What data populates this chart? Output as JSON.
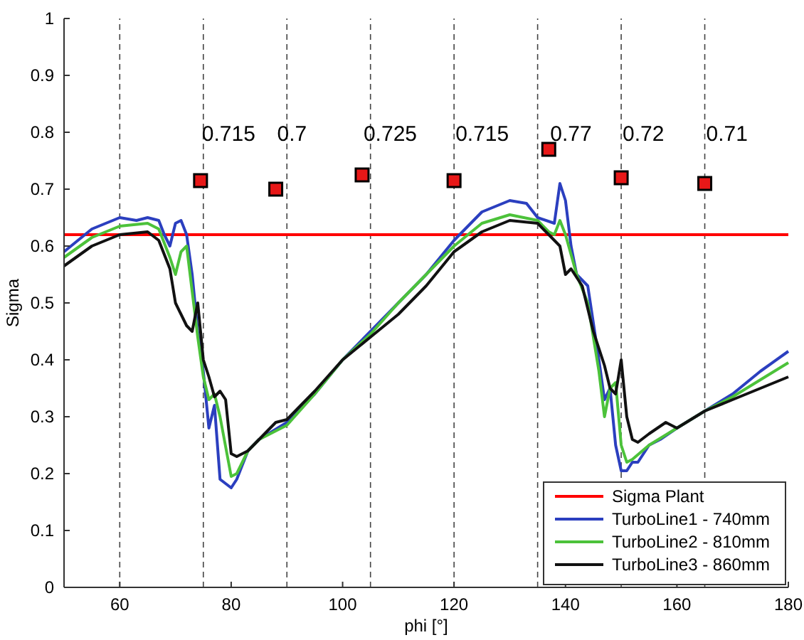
{
  "chart_data": {
    "type": "line",
    "xlabel": "phi [°]",
    "ylabel": "Sigma",
    "xlim": [
      50,
      180
    ],
    "ylim": [
      0,
      1
    ],
    "xticks": [
      60,
      80,
      100,
      120,
      140,
      160,
      180
    ],
    "yticks": [
      0,
      0.1,
      0.2,
      0.3,
      0.4,
      0.5,
      0.6,
      0.7,
      0.8,
      0.9,
      1
    ],
    "grid": false,
    "legend": "bottom right",
    "marker": "none",
    "line_style": "solid",
    "ref_lines": [
      {
        "axis": "x",
        "value": 60,
        "color": "#444444",
        "line_style": "dashed"
      },
      {
        "axis": "x",
        "value": 75,
        "color": "#444444",
        "line_style": "dashed"
      },
      {
        "axis": "x",
        "value": 90,
        "color": "#444444",
        "line_style": "dashed"
      },
      {
        "axis": "x",
        "value": 105,
        "color": "#444444",
        "line_style": "dashed"
      },
      {
        "axis": "x",
        "value": 120,
        "color": "#444444",
        "line_style": "dashed"
      },
      {
        "axis": "x",
        "value": 135,
        "color": "#444444",
        "line_style": "dashed"
      },
      {
        "axis": "x",
        "value": 150,
        "color": "#444444",
        "line_style": "dashed"
      },
      {
        "axis": "x",
        "value": 165,
        "color": "#444444",
        "line_style": "dashed"
      }
    ],
    "series": [
      {
        "name": "Sigma Plant",
        "color": "#ff0000",
        "x": [
          50,
          180
        ],
        "values": [
          0.62,
          0.62
        ]
      },
      {
        "name": "TurboLine1 - 740mm",
        "color": "#2b3fbf",
        "x": [
          50,
          55,
          60,
          63,
          65,
          67,
          68,
          69,
          70,
          71,
          72,
          73,
          74,
          75,
          76,
          77,
          78,
          80,
          81,
          83,
          85,
          90,
          95,
          100,
          105,
          110,
          115,
          120,
          125,
          130,
          133,
          135,
          138,
          139,
          140,
          141,
          142,
          144,
          146,
          147,
          148,
          149,
          150,
          151,
          152,
          153,
          155,
          157,
          160,
          165,
          170,
          175,
          180
        ],
        "values": [
          0.59,
          0.63,
          0.65,
          0.645,
          0.65,
          0.645,
          0.62,
          0.6,
          0.64,
          0.645,
          0.62,
          0.55,
          0.45,
          0.38,
          0.28,
          0.32,
          0.19,
          0.175,
          0.19,
          0.24,
          0.26,
          0.29,
          0.34,
          0.4,
          0.45,
          0.5,
          0.55,
          0.61,
          0.66,
          0.68,
          0.675,
          0.65,
          0.64,
          0.71,
          0.68,
          0.6,
          0.55,
          0.53,
          0.4,
          0.33,
          0.35,
          0.25,
          0.205,
          0.205,
          0.22,
          0.22,
          0.25,
          0.26,
          0.28,
          0.31,
          0.34,
          0.38,
          0.415
        ]
      },
      {
        "name": "TurboLine2 - 810mm",
        "color": "#4cc23a",
        "x": [
          50,
          55,
          60,
          65,
          67,
          69,
          70,
          71,
          72,
          73,
          74,
          75,
          76,
          77,
          78,
          80,
          81,
          83,
          85,
          90,
          95,
          100,
          105,
          110,
          115,
          120,
          125,
          130,
          135,
          137,
          138,
          139,
          140,
          142,
          144,
          146,
          147,
          148,
          149,
          150,
          151,
          152,
          155,
          160,
          165,
          170,
          175,
          180
        ],
        "values": [
          0.58,
          0.615,
          0.635,
          0.64,
          0.63,
          0.58,
          0.55,
          0.59,
          0.6,
          0.52,
          0.44,
          0.37,
          0.33,
          0.34,
          0.3,
          0.195,
          0.2,
          0.24,
          0.26,
          0.285,
          0.34,
          0.4,
          0.445,
          0.5,
          0.55,
          0.6,
          0.64,
          0.655,
          0.645,
          0.625,
          0.62,
          0.645,
          0.62,
          0.55,
          0.5,
          0.38,
          0.3,
          0.35,
          0.36,
          0.25,
          0.22,
          0.225,
          0.25,
          0.28,
          0.31,
          0.335,
          0.365,
          0.395
        ]
      },
      {
        "name": "TurboLine3 - 860mm",
        "color": "#111111",
        "x": [
          50,
          55,
          60,
          65,
          67,
          69,
          70,
          72,
          73,
          74,
          75,
          76,
          77,
          78,
          79,
          80,
          81,
          83,
          85,
          88,
          90,
          95,
          100,
          105,
          110,
          115,
          120,
          125,
          130,
          135,
          138,
          139,
          140,
          141,
          143,
          145,
          147,
          148,
          149,
          150,
          151,
          152,
          153,
          155,
          158,
          160,
          165,
          170,
          175,
          180
        ],
        "values": [
          0.565,
          0.6,
          0.62,
          0.625,
          0.61,
          0.56,
          0.5,
          0.46,
          0.45,
          0.5,
          0.4,
          0.37,
          0.335,
          0.345,
          0.33,
          0.235,
          0.23,
          0.24,
          0.26,
          0.29,
          0.295,
          0.345,
          0.4,
          0.44,
          0.48,
          0.53,
          0.59,
          0.625,
          0.645,
          0.64,
          0.61,
          0.6,
          0.55,
          0.56,
          0.53,
          0.45,
          0.39,
          0.35,
          0.34,
          0.4,
          0.3,
          0.26,
          0.255,
          0.27,
          0.29,
          0.28,
          0.31,
          0.33,
          0.35,
          0.37
        ]
      },
      {
        "type": "scatter",
        "marker": "square",
        "color": "#e81818",
        "x": [
          74.5,
          88,
          103.5,
          120,
          137,
          150,
          165
        ],
        "values": [
          0.715,
          0.7,
          0.725,
          0.715,
          0.77,
          0.72,
          0.71
        ],
        "value_labels": [
          "0.715",
          "0.7",
          "0.725",
          "0.715",
          "0.77",
          "0.72",
          "0.71"
        ]
      }
    ]
  }
}
